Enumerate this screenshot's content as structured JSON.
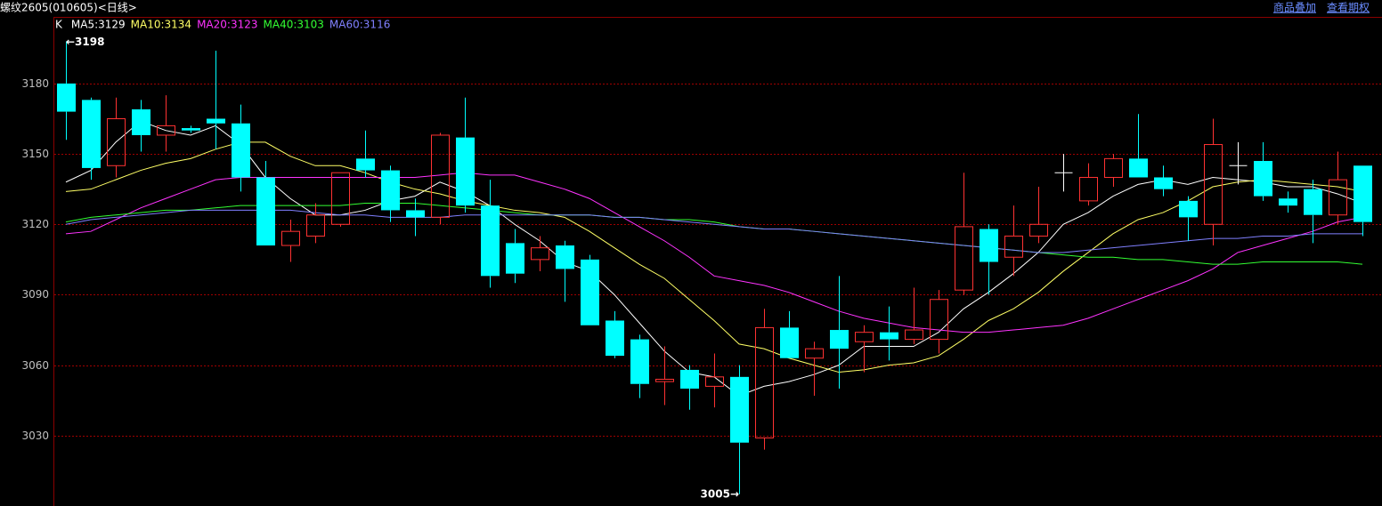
{
  "header": {
    "title": "螺纹2605(010605)<日线>",
    "links": [
      "商品叠加",
      "查看期权"
    ]
  },
  "chart_data": {
    "type": "candlestick",
    "label": "K",
    "open": [
      3180,
      3173,
      3145,
      3169,
      3158,
      3161,
      3165,
      3163,
      3140,
      3111,
      3115,
      3120,
      3148,
      3143,
      3126,
      3123,
      3157,
      3128,
      3112,
      3105,
      3111,
      3105,
      3079,
      3071,
      3053,
      3058,
      3051,
      3055,
      3029,
      3076,
      3063,
      3075,
      3070,
      3074,
      3071,
      3071,
      3092,
      3118,
      3106,
      3115,
      3142,
      3130,
      3140,
      3148,
      3140,
      3130,
      3120,
      3145,
      3147,
      3131,
      3135,
      3124,
      3145
    ],
    "high": [
      3198,
      3174,
      3174,
      3173,
      3175,
      3162,
      3194,
      3171,
      3147,
      3122,
      3129,
      3142,
      3160,
      3145,
      3131,
      3159,
      3174,
      3139,
      3118,
      3115,
      3113,
      3107,
      3083,
      3073,
      3068,
      3060,
      3065,
      3060,
      3084,
      3083,
      3070,
      3098,
      3077,
      3085,
      3093,
      3092,
      3142,
      3120,
      3128,
      3136,
      3150,
      3146,
      3150,
      3167,
      3145,
      3132,
      3165,
      3155,
      3155,
      3134,
      3139,
      3151,
      3145
    ],
    "low": [
      3156,
      3139,
      3140,
      3151,
      3151,
      3159,
      3152,
      3134,
      3111,
      3104,
      3112,
      3119,
      3140,
      3121,
      3115,
      3120,
      3125,
      3093,
      3095,
      3100,
      3087,
      3077,
      3063,
      3046,
      3043,
      3041,
      3042,
      3005,
      3024,
      3063,
      3047,
      3050,
      3057,
      3062,
      3069,
      3065,
      3090,
      3090,
      3098,
      3112,
      3134,
      3128,
      3136,
      3140,
      3132,
      3113,
      3111,
      3137,
      3130,
      3125,
      3112,
      3120,
      3115
    ],
    "close": [
      3168,
      3144,
      3165,
      3158,
      3162,
      3160,
      3163,
      3140,
      3111,
      3117,
      3124,
      3142,
      3143,
      3126,
      3123,
      3158,
      3128,
      3098,
      3099,
      3110,
      3101,
      3077,
      3064,
      3052,
      3054,
      3050,
      3055,
      3027,
      3076,
      3063,
      3067,
      3067,
      3074,
      3071,
      3075,
      3088,
      3119,
      3104,
      3115,
      3120,
      3142,
      3140,
      3148,
      3140,
      3135,
      3123,
      3154,
      3145,
      3132,
      3128,
      3124,
      3139,
      3121
    ],
    "up_color": "#ff3232",
    "down_color": "#00ffff",
    "flat_color": "#ffffff",
    "series": [
      {
        "name": "MA5:3129",
        "color": "#ffffff",
        "values": [
          3138,
          3143,
          3155,
          3164,
          3160,
          3158,
          3162,
          3154,
          3140,
          3131,
          3124,
          3124,
          3126,
          3130,
          3132,
          3138,
          3134,
          3128,
          3120,
          3113,
          3104,
          3100,
          3090,
          3078,
          3066,
          3057,
          3055,
          3047,
          3051,
          3053,
          3056,
          3060,
          3068,
          3068,
          3068,
          3074,
          3084,
          3091,
          3099,
          3108,
          3120,
          3125,
          3132,
          3137,
          3139,
          3137,
          3140,
          3139,
          3138,
          3136,
          3136,
          3133,
          3129
        ]
      },
      {
        "name": "MA10:3134",
        "color": "#ffff66",
        "values": [
          3134,
          3135,
          3139,
          3143,
          3146,
          3148,
          3152,
          3155,
          3155,
          3149,
          3145,
          3145,
          3142,
          3138,
          3135,
          3133,
          3130,
          3128,
          3126,
          3125,
          3123,
          3117,
          3110,
          3103,
          3097,
          3088,
          3079,
          3069,
          3067,
          3063,
          3060,
          3057,
          3058,
          3060,
          3061,
          3064,
          3071,
          3079,
          3084,
          3091,
          3100,
          3108,
          3116,
          3122,
          3125,
          3130,
          3136,
          3138,
          3139,
          3138,
          3137,
          3136,
          3134
        ]
      },
      {
        "name": "MA20:3123",
        "color": "#ff33ff",
        "values": [
          3116,
          3117,
          3122,
          3127,
          3131,
          3135,
          3139,
          3140,
          3140,
          3140,
          3140,
          3140,
          3140,
          3140,
          3140,
          3141,
          3142,
          3141,
          3141,
          3138,
          3135,
          3131,
          3125,
          3119,
          3113,
          3106,
          3098,
          3096,
          3094,
          3091,
          3087,
          3083,
          3080,
          3078,
          3076,
          3075,
          3074,
          3074,
          3075,
          3076,
          3077,
          3080,
          3084,
          3088,
          3092,
          3096,
          3101,
          3108,
          3111,
          3114,
          3117,
          3121,
          3123
        ]
      },
      {
        "name": "MA40:3103",
        "color": "#33ff33",
        "values": [
          3121,
          3123,
          3124,
          3125,
          3126,
          3126,
          3127,
          3128,
          3128,
          3128,
          3128,
          3128,
          3129,
          3129,
          3129,
          3128,
          3127,
          3126,
          3125,
          3124,
          3124,
          3124,
          3123,
          3123,
          3122,
          3122,
          3121,
          3119,
          3118,
          3118,
          3117,
          3116,
          3115,
          3114,
          3113,
          3112,
          3111,
          3110,
          3109,
          3108,
          3107,
          3106,
          3106,
          3105,
          3105,
          3104,
          3103,
          3103,
          3104,
          3104,
          3104,
          3104,
          3103
        ]
      },
      {
        "name": "MA60:3116",
        "color": "#8080ff",
        "values": [
          3120,
          3122,
          3123,
          3124,
          3125,
          3126,
          3126,
          3126,
          3126,
          3126,
          3125,
          3124,
          3124,
          3123,
          3123,
          3123,
          3124,
          3124,
          3124,
          3124,
          3124,
          3124,
          3123,
          3123,
          3122,
          3121,
          3120,
          3119,
          3118,
          3118,
          3117,
          3116,
          3115,
          3114,
          3113,
          3112,
          3111,
          3110,
          3109,
          3108,
          3108,
          3109,
          3110,
          3111,
          3112,
          3113,
          3114,
          3114,
          3115,
          3115,
          3116,
          3116,
          3116
        ]
      }
    ],
    "annotations": {
      "high": "←3198",
      "low": "3005→"
    },
    "ylim": [
      3000,
      3208
    ],
    "yticks": [
      3030,
      3060,
      3090,
      3120,
      3150,
      3180
    ],
    "grid": true
  }
}
